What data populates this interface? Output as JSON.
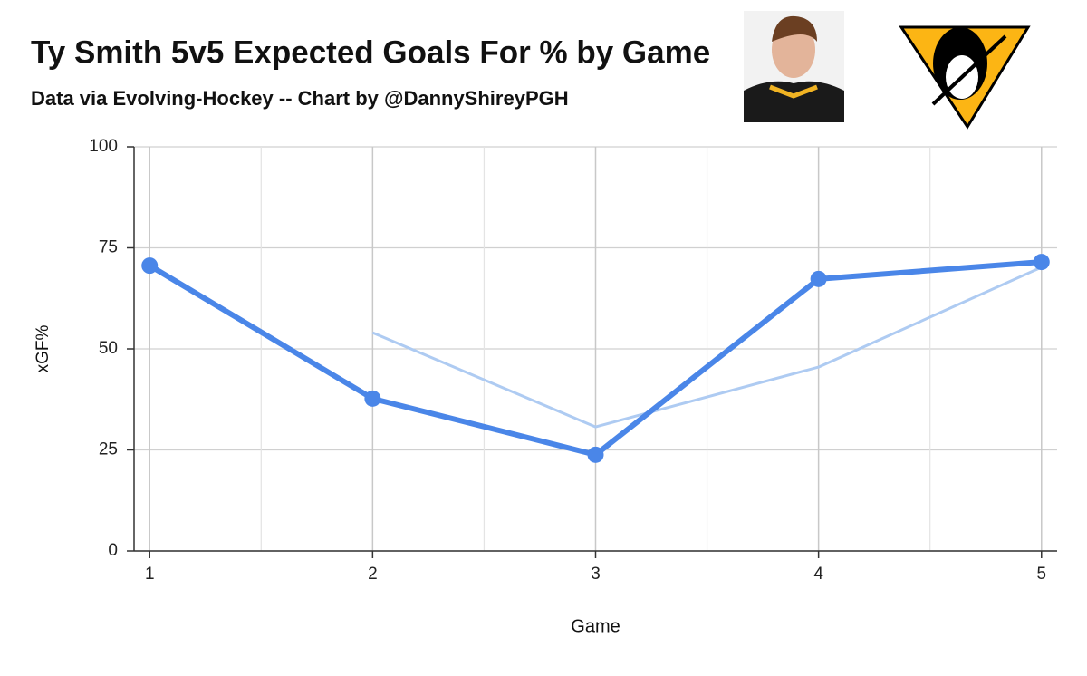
{
  "chart_data": {
    "type": "line",
    "title": "Ty Smith 5v5 Expected Goals For % by Game",
    "subtitle": "Data via Evolving-Hockey -- Chart by @DannyShireyPGH",
    "x_label": "Game",
    "y_label": "xGF%",
    "x": [
      1,
      2,
      3,
      4,
      5
    ],
    "series": [
      {
        "color": "#aecbf2",
        "values": [
          null,
          54.0,
          30.7,
          45.5,
          70.2
        ],
        "width": 3,
        "markers": false
      },
      {
        "color": "#4a86e8",
        "values": [
          70.6,
          37.7,
          23.8,
          67.3,
          71.5
        ],
        "width": 6,
        "markers": true
      }
    ],
    "xlim": [
      0.93,
      5.07
    ],
    "ylim": [
      0,
      100
    ],
    "xticks": [
      1,
      2,
      3,
      4,
      5
    ],
    "xminorticks": [
      1.5,
      2.5,
      3.5,
      4.5
    ],
    "yticks": [
      0,
      25,
      50,
      75,
      100
    ],
    "grid": true
  }
}
